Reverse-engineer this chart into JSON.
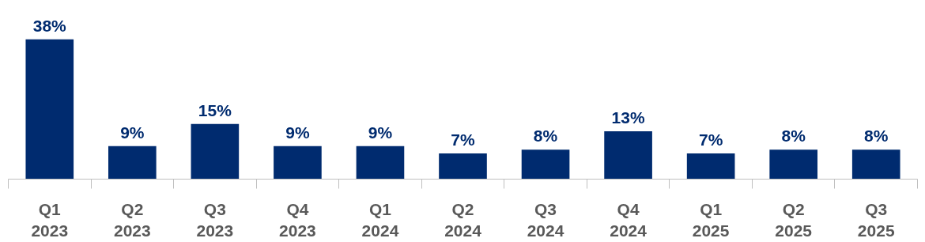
{
  "chart_data": {
    "type": "bar",
    "categories": [
      "Q1\n2023",
      "Q2\n2023",
      "Q3\n2023",
      "Q4\n2023",
      "Q1\n2024",
      "Q2\n2024",
      "Q3\n2024",
      "Q4\n2024",
      "Q1\n2025",
      "Q2\n2025",
      "Q3\n2025"
    ],
    "values": [
      38,
      9,
      15,
      9,
      9,
      7,
      8,
      13,
      7,
      8,
      8
    ],
    "value_labels": [
      "38%",
      "9%",
      "15%",
      "9%",
      "9%",
      "7%",
      "8%",
      "13%",
      "7%",
      "8%",
      "8%"
    ],
    "color": "#002b6f",
    "grid": false
  }
}
